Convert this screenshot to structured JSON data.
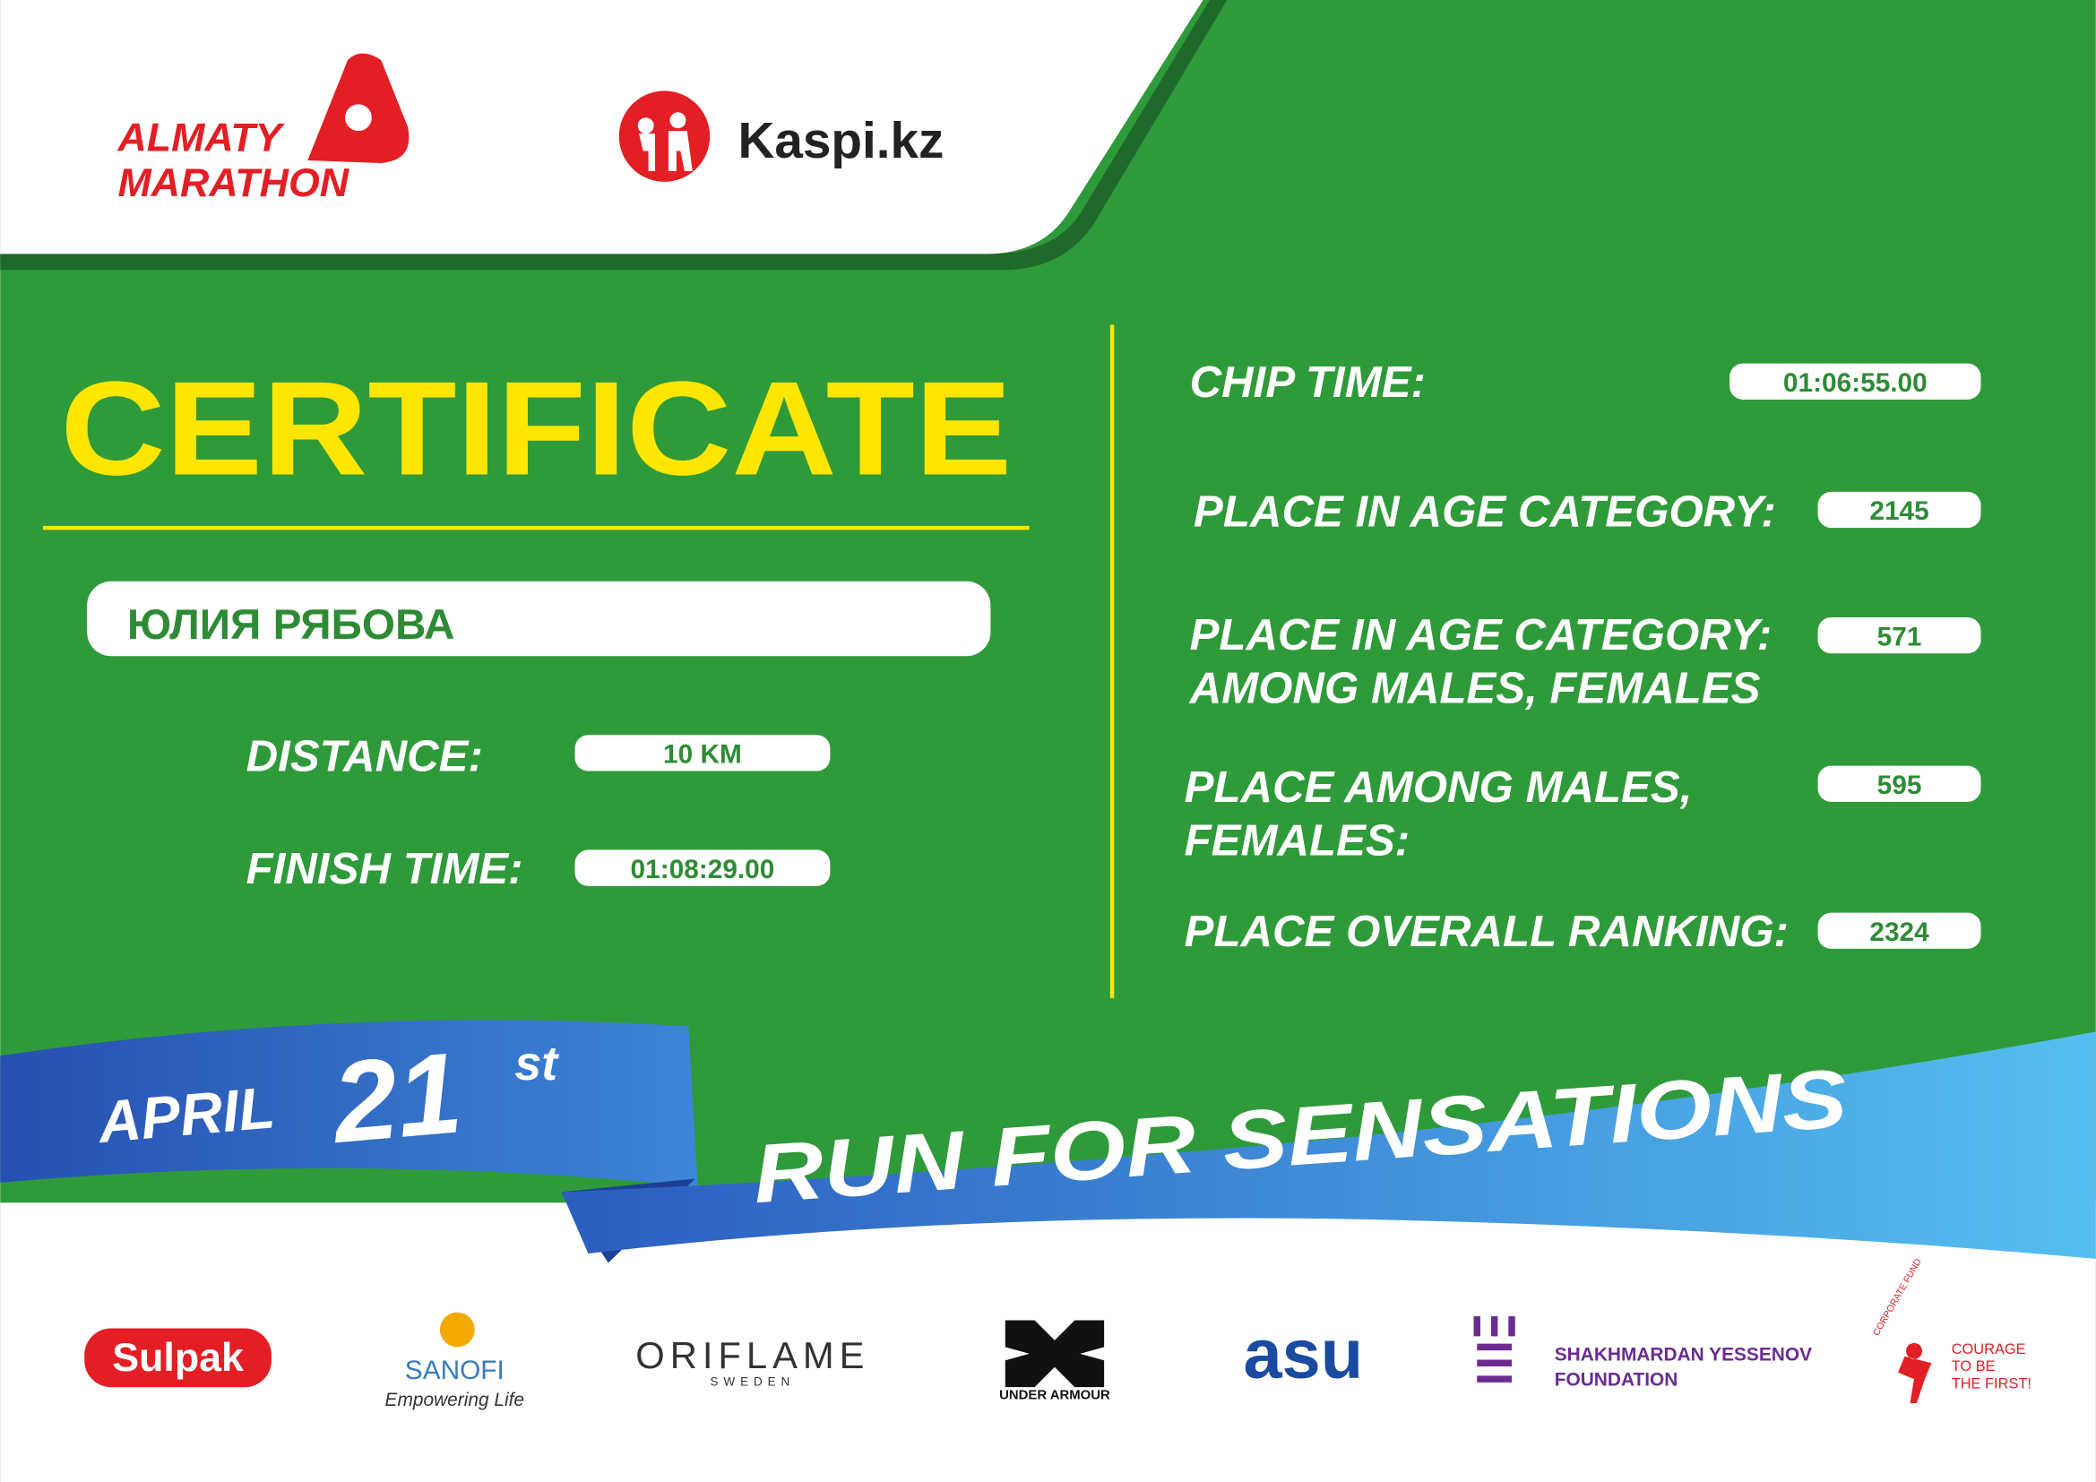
{
  "header": {
    "logo_lines": [
      "ALMATY",
      "MARATHON"
    ],
    "sponsor": "Kaspi.kz"
  },
  "certificate": {
    "title": "CERTIFICATE",
    "name": "ЮЛИЯ РЯБОВА",
    "left_fields": [
      {
        "label": [
          "DISTANCE:"
        ],
        "value": "10 KM"
      },
      {
        "label": [
          "FINISH TIME:"
        ],
        "value": "01:08:29.00"
      }
    ],
    "right_fields": [
      {
        "label": [
          "CHIP TIME:"
        ],
        "value": "01:06:55.00"
      },
      {
        "label": [
          "PLACE IN AGE CATEGORY:"
        ],
        "value": 2145
      },
      {
        "label": [
          "PLACE IN AGE CATEGORY:",
          "AMONG MALES, FEMALES"
        ],
        "value": 571
      },
      {
        "label": [
          "PLACE AMONG MALES,",
          "FEMALES:"
        ],
        "value": 595
      },
      {
        "label": [
          "PLACE OVERALL RANKING:"
        ],
        "value": 2324
      }
    ]
  },
  "banner": {
    "month": "APRIL",
    "day": "21",
    "day_suffix": "st",
    "slogan": "RUN FOR SENSATIONS"
  },
  "partners": {
    "sulpak": "Sulpak",
    "sanofi": "SANOFI",
    "sanofi_tagline": "Empowering Life",
    "oriflame": "ORIFLAME",
    "oriflame_sub": "SWEDEN",
    "under_armour": "UNDER ARMOUR",
    "asu": "asu",
    "yessenov": [
      "SHAKHMARDAN YESSENOV",
      "FOUNDATION"
    ],
    "fund_arc": "CORPORATE FUND",
    "fund_motto": [
      "COURAGE",
      "TO BE",
      "THE FIRST!"
    ]
  }
}
